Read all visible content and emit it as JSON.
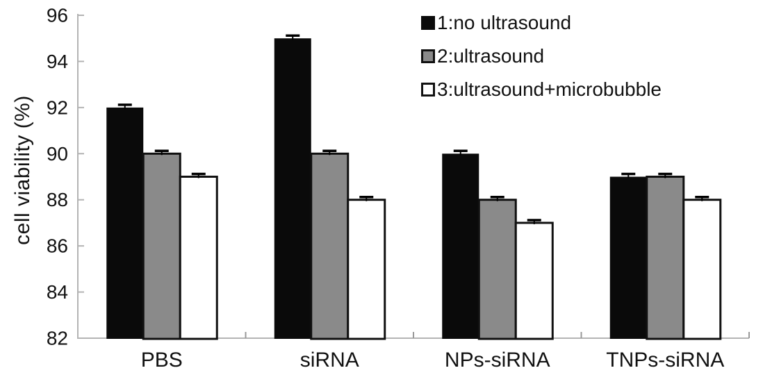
{
  "chart_data": {
    "type": "bar",
    "title": "",
    "xlabel": "",
    "ylabel": "cell viability (%)",
    "ylim": [
      82,
      96
    ],
    "yticks": [
      82,
      84,
      86,
      88,
      90,
      92,
      94,
      96
    ],
    "categories": [
      "PBS",
      "siRNA",
      "NPs-siRNA",
      "TNPs-siRNA"
    ],
    "series": [
      {
        "name": "1:no ultrasound",
        "color": "#0a0a0a",
        "border": "#0a0a0a",
        "values": [
          92,
          95,
          90,
          89
        ],
        "error": 0.12
      },
      {
        "name": "2:ultrasound",
        "color": "#8a8a8a",
        "border": "#111111",
        "values": [
          90,
          90,
          88,
          89
        ],
        "error": 0.12
      },
      {
        "name": "3:ultrasound+microbubble",
        "color": "#ffffff",
        "border": "#111111",
        "values": [
          89,
          88,
          87,
          88
        ],
        "error": 0.12
      }
    ],
    "legend_position": "top-right",
    "grid": false,
    "error_bars": true,
    "colors": {
      "axis": "#b3b3b3",
      "tick": "#999999",
      "text": "#111111",
      "error": "#000000",
      "background": "#ffffff"
    }
  }
}
